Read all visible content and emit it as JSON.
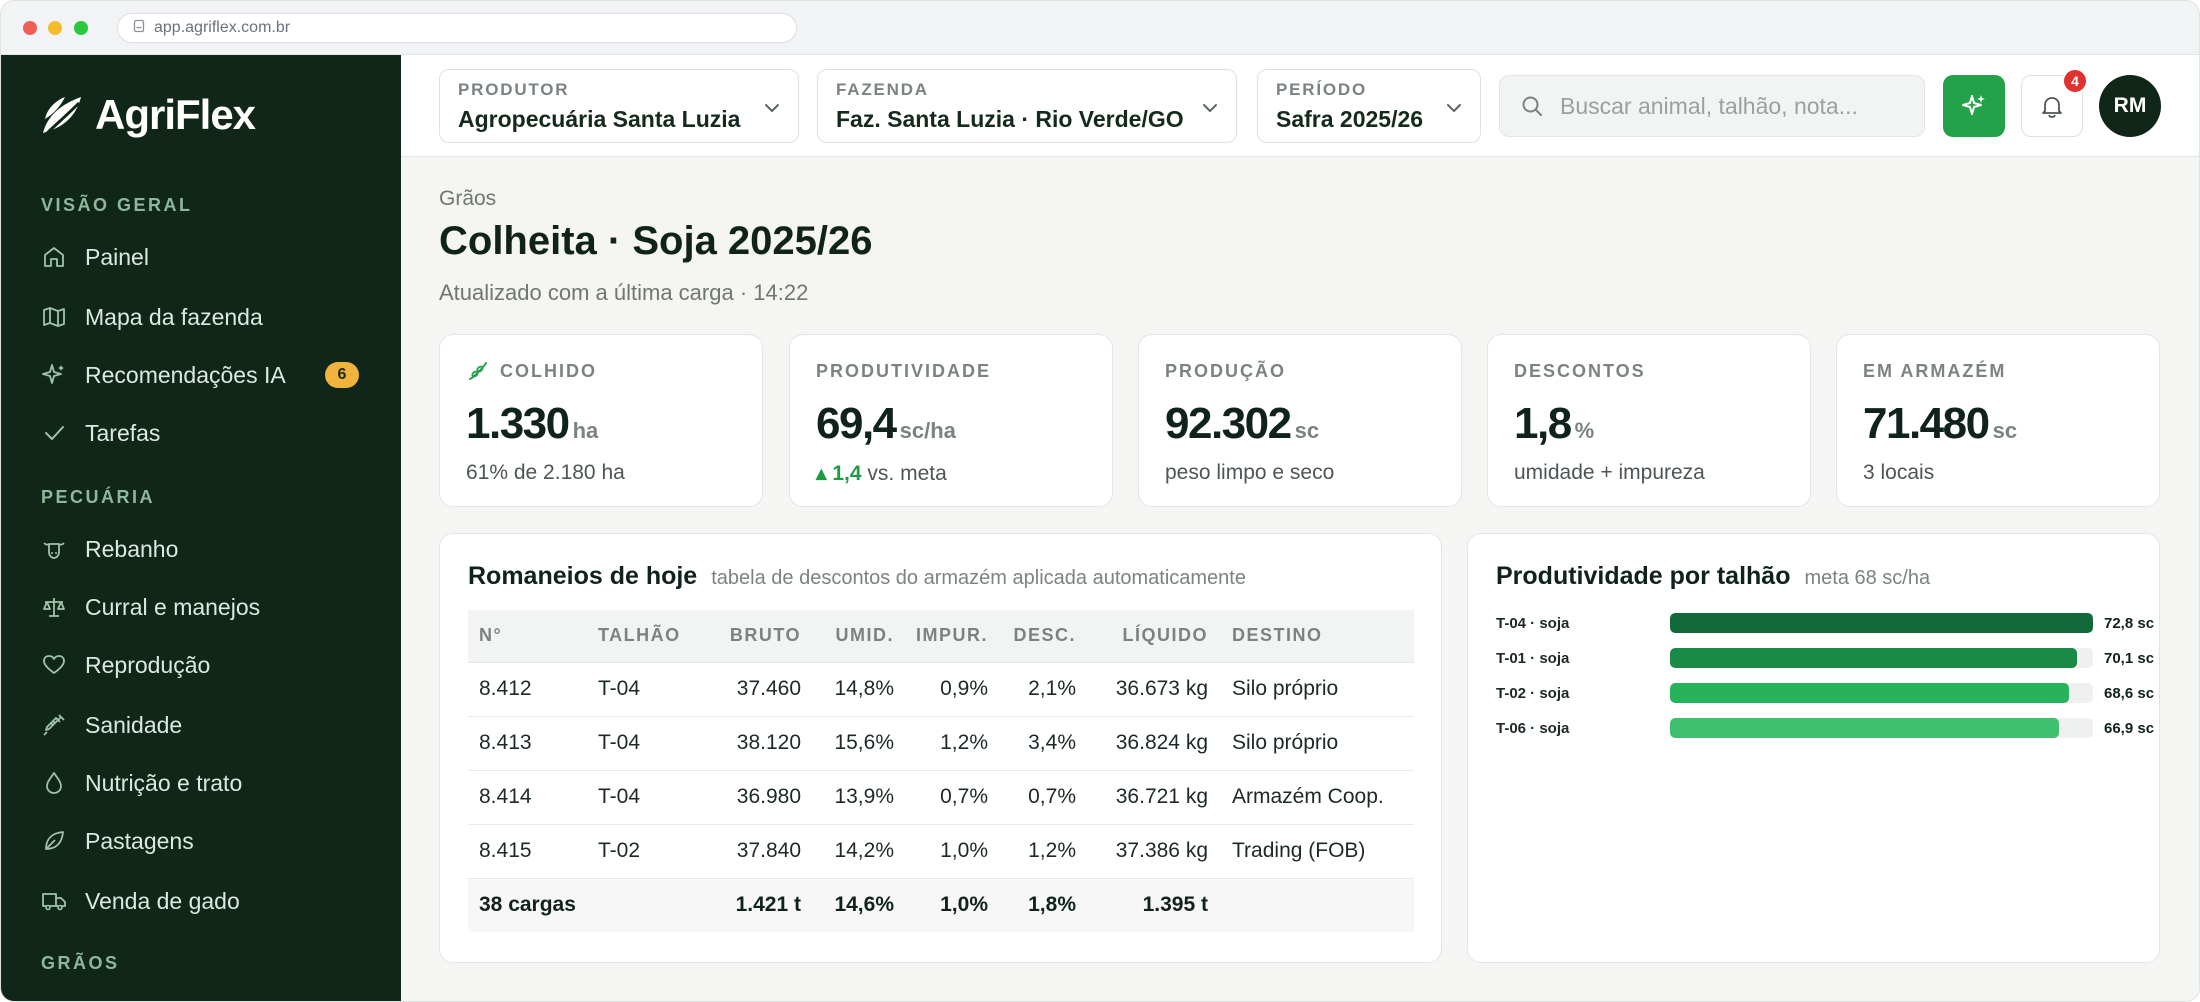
{
  "browser": {
    "url": "app.agriflex.com.br"
  },
  "brand": {
    "name": "AgriFlex"
  },
  "sidebar": {
    "sections": [
      {
        "title": "VISÃO GERAL"
      },
      {
        "title": "PECUÁRIA"
      },
      {
        "title": "GRÃOS"
      }
    ],
    "items": [
      {
        "label": "Painel",
        "icon": "home-icon"
      },
      {
        "label": "Mapa da fazenda",
        "icon": "map-icon"
      },
      {
        "label": "Recomendações IA",
        "icon": "sparkle-icon",
        "badge": "6"
      },
      {
        "label": "Tarefas",
        "icon": "check-icon"
      },
      {
        "label": "Rebanho",
        "icon": "cow-icon"
      },
      {
        "label": "Curral e manejos",
        "icon": "scale-icon"
      },
      {
        "label": "Reprodução",
        "icon": "heart-icon"
      },
      {
        "label": "Sanidade",
        "icon": "syringe-icon"
      },
      {
        "label": "Nutrição e trato",
        "icon": "drop-icon"
      },
      {
        "label": "Pastagens",
        "icon": "leaf-icon"
      },
      {
        "label": "Venda de gado",
        "icon": "truck-icon"
      }
    ]
  },
  "header": {
    "produtor": {
      "label": "PRODUTOR",
      "value": "Agropecuária Santa Luzia"
    },
    "fazenda": {
      "label": "FAZENDA",
      "value": "Faz. Santa Luzia · Rio Verde/GO"
    },
    "periodo": {
      "label": "PERÍODO",
      "value": "Safra 2025/26"
    },
    "search_placeholder": "Buscar animal, talhão, nota...",
    "notifications": "4",
    "avatar": "RM"
  },
  "page": {
    "breadcrumb": "Grãos",
    "title": "Colheita · Soja 2025/26",
    "subtitle": "Atualizado com a última carga · 14:22"
  },
  "kpis": [
    {
      "label": "COLHIDO",
      "value": "1.330",
      "unit": "ha",
      "foot": "61% de 2.180 ha"
    },
    {
      "label": "PRODUTIVIDADE",
      "value": "69,4",
      "unit": "sc/ha",
      "delta": "▴ 1,4",
      "foot": "vs. meta"
    },
    {
      "label": "PRODUÇÃO",
      "value": "92.302",
      "unit": "sc",
      "foot": "peso limpo e seco"
    },
    {
      "label": "DESCONTOS",
      "value": "1,8",
      "unit": "%",
      "foot": "umidade + impureza"
    },
    {
      "label": "EM ARMAZÉM",
      "value": "71.480",
      "unit": "sc",
      "foot": "3 locais"
    }
  ],
  "romaneios": {
    "title": "Romaneios de hoje",
    "subtitle": "tabela de descontos do armazém aplicada automaticamente",
    "columns": [
      "N°",
      "TALHÃO",
      "BRUTO",
      "UMID.",
      "IMPUR.",
      "DESC.",
      "LÍQUIDO",
      "DESTINO"
    ],
    "rows": [
      [
        "8.412",
        "T-04",
        "37.460",
        "14,8%",
        "0,9%",
        "2,1%",
        "36.673 kg",
        "Silo próprio"
      ],
      [
        "8.413",
        "T-04",
        "38.120",
        "15,6%",
        "1,2%",
        "3,4%",
        "36.824 kg",
        "Silo próprio"
      ],
      [
        "8.414",
        "T-04",
        "36.980",
        "13,9%",
        "0,7%",
        "0,7%",
        "36.721 kg",
        "Armazém Coop."
      ],
      [
        "8.415",
        "T-02",
        "37.840",
        "14,2%",
        "1,0%",
        "1,2%",
        "37.386 kg",
        "Trading (FOB)"
      ]
    ],
    "totals": [
      "38 cargas",
      "",
      "1.421 t",
      "14,6%",
      "1,0%",
      "1,8%",
      "1.395 t",
      ""
    ]
  },
  "produtividade": {
    "title": "Produtividade por talhão",
    "subtitle": "meta 68 sc/ha"
  },
  "chart_data": {
    "type": "bar",
    "orientation": "horizontal",
    "categories": [
      "T-04 · soja",
      "T-01 · soja",
      "T-02 · soja",
      "T-06 · soja"
    ],
    "values": [
      72.8,
      70.1,
      68.6,
      66.9
    ],
    "value_labels": [
      "72,8 sc",
      "70,1 sc",
      "68,6 sc",
      "66,9 sc"
    ],
    "colors": [
      "#11693a",
      "#1a8a46",
      "#28b25b",
      "#3fc06e"
    ],
    "xlim": [
      0,
      72.8
    ],
    "grid": false
  }
}
